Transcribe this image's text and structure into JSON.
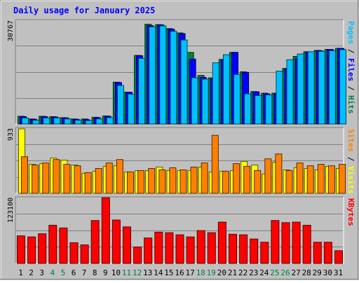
{
  "chart_data": {
    "type": "bar",
    "title": "Daily usage for January 2025",
    "categories": [
      "1",
      "2",
      "3",
      "4",
      "5",
      "6",
      "7",
      "8",
      "9",
      "10",
      "11",
      "12",
      "13",
      "14",
      "15",
      "16",
      "17",
      "18",
      "19",
      "20",
      "21",
      "22",
      "23",
      "24",
      "25",
      "26",
      "27",
      "28",
      "29",
      "30",
      "31"
    ],
    "weekend_days": [
      "4",
      "5",
      "11",
      "12",
      "18",
      "19",
      "25",
      "26"
    ],
    "panels": [
      {
        "id": "hits-files-pages",
        "ymax": 30767,
        "ymax_label": "30767",
        "axis_label_parts": [
          {
            "text": "Pages",
            "color": "#00c0ff"
          },
          {
            "text": " / ",
            "color": "#000000"
          },
          {
            "text": "Files",
            "color": "#0000ff"
          },
          {
            "text": " / ",
            "color": "#000000"
          },
          {
            "text": "Hits",
            "color": "#008040"
          }
        ],
        "series": [
          {
            "name": "Hits",
            "color": "#008040",
            "values": [
              2300,
              1500,
              2300,
              2200,
              1900,
              1500,
              1500,
              2000,
              2400,
              12500,
              9500,
              20500,
              29800,
              29700,
              28500,
              27200,
              21400,
              14500,
              13800,
              19300,
              21400,
              15600,
              9700,
              9200,
              9200,
              16600,
              20200,
              21600,
              22000,
              22300,
              22600
            ]
          },
          {
            "name": "Files",
            "color": "#0000ff",
            "values": [
              2200,
              1400,
              2200,
              2100,
              1800,
              1400,
              1300,
              1900,
              2300,
              12400,
              9500,
              20400,
              29400,
              29600,
              28300,
              27000,
              19400,
              13900,
              13500,
              19100,
              21400,
              15400,
              9600,
              9000,
              9100,
              16500,
              19500,
              21400,
              21900,
              22300,
              22600
            ]
          },
          {
            "name": "Pages",
            "color": "#00c0ff",
            "values": [
              1800,
              1100,
              1800,
              1800,
              1500,
              1100,
              1000,
              1500,
              1900,
              11500,
              8900,
              19600,
              29000,
              29300,
              27700,
              25100,
              13800,
              13400,
              18300,
              20700,
              14800,
              9000,
              8500,
              8700,
              15800,
              19200,
              20900,
              21600,
              21700,
              21900,
              22200
            ]
          }
        ]
      },
      {
        "id": "visits-sites",
        "ymax": 933,
        "ymax_label": "933",
        "axis_label_parts": [
          {
            "text": "Sites",
            "color": "#ff8000"
          },
          {
            "text": " / ",
            "color": "#000000"
          },
          {
            "text": "Visits",
            "color": "#ffff00"
          }
        ],
        "series": [
          {
            "name": "Visits",
            "color": "#ffff00",
            "values": [
              933,
              420,
              430,
              510,
              480,
              410,
              290,
              320,
              390,
              400,
              310,
              330,
              330,
              380,
              330,
              330,
              330,
              380,
              310,
              320,
              330,
              460,
              410,
              280,
              450,
              340,
              370,
              360,
              340,
              390,
              360
            ]
          },
          {
            "name": "Sites",
            "color": "#ff8000",
            "values": [
              530,
              410,
              440,
              490,
              420,
              400,
              300,
              360,
              440,
              490,
              310,
              330,
              360,
              340,
              370,
              340,
              380,
              440,
              840,
              320,
              430,
              390,
              330,
              500,
              570,
              330,
              440,
              400,
              420,
              400,
              420
            ]
          }
        ]
      },
      {
        "id": "kbytes",
        "ymax": 123100,
        "ymax_label": "123100",
        "axis_label_parts": [
          {
            "text": "KBytes",
            "color": "#ff0000"
          }
        ],
        "series": [
          {
            "name": "KBytes",
            "color": "#ff0000",
            "values": [
              52000,
              50000,
              56000,
              72000,
              67000,
              39000,
              35000,
              81000,
              124000,
              82000,
              69000,
              31000,
              48000,
              59000,
              58000,
              54000,
              50000,
              62000,
              58000,
              78000,
              55000,
              54000,
              46000,
              40000,
              81000,
              77000,
              78000,
              72000,
              40000,
              40000,
              24000
            ]
          }
        ]
      }
    ]
  }
}
